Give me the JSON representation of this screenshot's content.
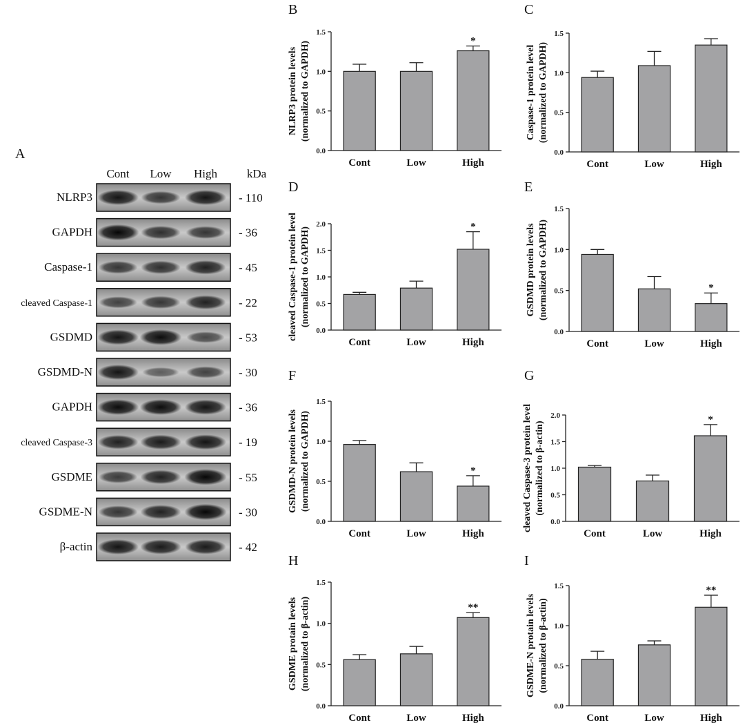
{
  "western_blot": {
    "panel_letter": "A",
    "lanes": [
      "Cont",
      "Low",
      "High"
    ],
    "kda_header": "kDa",
    "rows": [
      {
        "label": "NLRP3",
        "kda": "- 110",
        "intensity": [
          0.85,
          0.6,
          0.85
        ]
      },
      {
        "label": "GAPDH",
        "kda": "- 36",
        "intensity": [
          0.95,
          0.65,
          0.6
        ]
      },
      {
        "label": "Caspase-1",
        "kda": "- 45",
        "intensity": [
          0.6,
          0.65,
          0.75
        ]
      },
      {
        "label": "cleaved Caspase-1",
        "kda": "- 22",
        "intensity": [
          0.5,
          0.6,
          0.75
        ]
      },
      {
        "label": "GSDMD",
        "kda": "- 53",
        "intensity": [
          0.85,
          0.9,
          0.45
        ]
      },
      {
        "label": "GSDMD-N",
        "kda": "- 30",
        "intensity": [
          0.85,
          0.3,
          0.5
        ]
      },
      {
        "label": "GAPDH",
        "kda": "- 36",
        "intensity": [
          0.9,
          0.9,
          0.85
        ]
      },
      {
        "label": "cleaved Caspase-3",
        "kda": "- 19",
        "intensity": [
          0.75,
          0.8,
          0.85
        ]
      },
      {
        "label": "GSDME",
        "kda": "- 55",
        "intensity": [
          0.55,
          0.75,
          0.95
        ]
      },
      {
        "label": "GSDME-N",
        "kda": "- 30",
        "intensity": [
          0.6,
          0.75,
          0.95
        ]
      },
      {
        "label": "β-actin",
        "kda": "- 42",
        "intensity": [
          0.85,
          0.8,
          0.8
        ]
      }
    ]
  },
  "chart_data": [
    {
      "panel": "B",
      "type": "bar",
      "categories": [
        "Cont",
        "Low",
        "High"
      ],
      "values": [
        1.0,
        1.0,
        1.26
      ],
      "errors": [
        0.09,
        0.11,
        0.06
      ],
      "significance": [
        "",
        "",
        "*"
      ],
      "ylabel_line1": "NLRP3 protein levels",
      "ylabel_line2": "(normalized to GAPDH)",
      "ylim": [
        0,
        1.5
      ],
      "ticks": [
        "0.0",
        "0.5",
        "1.0",
        "1.5"
      ]
    },
    {
      "panel": "C",
      "type": "bar",
      "categories": [
        "Cont",
        "Low",
        "High"
      ],
      "values": [
        0.94,
        1.09,
        1.35
      ],
      "errors": [
        0.08,
        0.18,
        0.08
      ],
      "significance": [
        "",
        "",
        ""
      ],
      "ylabel_line1": "Caspase-1 protein level",
      "ylabel_line2": "(normalized to GAPDH)",
      "ylim": [
        0,
        1.5
      ],
      "ticks": [
        "0.0",
        "0.5",
        "1.0",
        "1.5"
      ]
    },
    {
      "panel": "D",
      "type": "bar",
      "categories": [
        "Cont",
        "Low",
        "High"
      ],
      "values": [
        0.67,
        0.79,
        1.52
      ],
      "errors": [
        0.04,
        0.13,
        0.33
      ],
      "significance": [
        "",
        "",
        "*"
      ],
      "ylabel_line1": "cleaved Caspase-1 protein level",
      "ylabel_line2": "(normalized to GAPDH)",
      "ylim": [
        0,
        2.0
      ],
      "ticks": [
        "0.0",
        "0.5",
        "1.0",
        "1.5",
        "2.0"
      ]
    },
    {
      "panel": "E",
      "type": "bar",
      "categories": [
        "Cont",
        "Low",
        "High"
      ],
      "values": [
        0.94,
        0.52,
        0.34
      ],
      "errors": [
        0.06,
        0.15,
        0.13
      ],
      "significance": [
        "",
        "",
        "*"
      ],
      "ylabel_line1": "GSDMD protein levels",
      "ylabel_line2": "(normalized to GAPDH)",
      "ylim": [
        0,
        1.5
      ],
      "ticks": [
        "0.0",
        "0.5",
        "1.0",
        "1.5"
      ]
    },
    {
      "panel": "F",
      "type": "bar",
      "categories": [
        "Cont",
        "Low",
        "High"
      ],
      "values": [
        0.96,
        0.62,
        0.44
      ],
      "errors": [
        0.05,
        0.11,
        0.13
      ],
      "significance": [
        "",
        "",
        "*"
      ],
      "ylabel_line1": "GSDMD-N protein levels",
      "ylabel_line2": "(normalized to GAPDH)",
      "ylim": [
        0,
        1.5
      ],
      "ticks": [
        "0.0",
        "0.5",
        "1.0",
        "1.5"
      ]
    },
    {
      "panel": "G",
      "type": "bar",
      "categories": [
        "Cont",
        "Low",
        "High"
      ],
      "values": [
        1.02,
        0.76,
        1.61
      ],
      "errors": [
        0.03,
        0.11,
        0.21
      ],
      "significance": [
        "",
        "",
        "*"
      ],
      "ylabel_line1": "cleaved Caspase-3 protein level",
      "ylabel_line2": "(normalized to β-actin)",
      "ylim": [
        0,
        2.0
      ],
      "ticks": [
        "0.0",
        "0.5",
        "1.0",
        "1.5",
        "2.0"
      ]
    },
    {
      "panel": "H",
      "type": "bar",
      "categories": [
        "Cont",
        "Low",
        "High"
      ],
      "values": [
        0.56,
        0.63,
        1.07
      ],
      "errors": [
        0.06,
        0.09,
        0.06
      ],
      "significance": [
        "",
        "",
        "**"
      ],
      "ylabel_line1": "GSDME protain levels",
      "ylabel_line2": "(normalized to β-actin)",
      "ylim": [
        0,
        1.5
      ],
      "ticks": [
        "0.0",
        "0.5",
        "1.0",
        "1.5"
      ]
    },
    {
      "panel": "I",
      "type": "bar",
      "categories": [
        "Cont",
        "Low",
        "High"
      ],
      "values": [
        0.58,
        0.76,
        1.23
      ],
      "errors": [
        0.1,
        0.05,
        0.15
      ],
      "significance": [
        "",
        "",
        "**"
      ],
      "ylabel_line1": "GSDME-N protain levels",
      "ylabel_line2": "(normalized to β-actin)",
      "ylim": [
        0,
        1.5
      ],
      "ticks": [
        "0.0",
        "0.5",
        "1.0",
        "1.5"
      ]
    }
  ]
}
